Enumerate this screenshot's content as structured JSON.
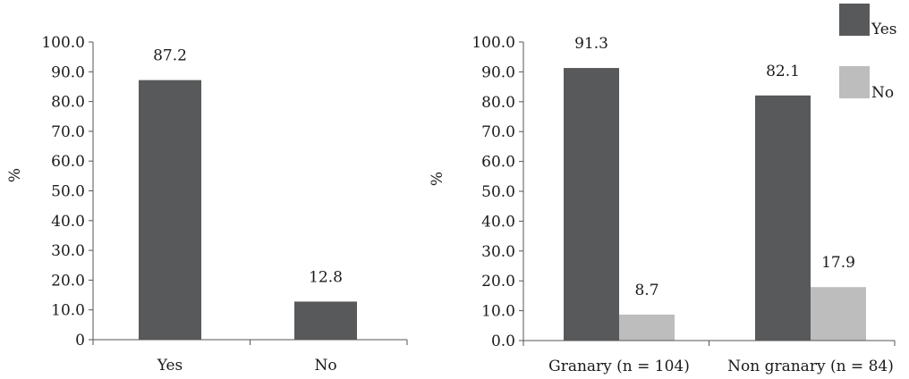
{
  "colors": {
    "yes": "#58595b",
    "no": "#bdbdbd",
    "axis": "#555555"
  },
  "chart_data": [
    {
      "type": "bar",
      "categories": [
        "Yes",
        "No"
      ],
      "series": [
        {
          "values": [
            87.2,
            12.8
          ],
          "colors": [
            "#58595b",
            "#58595b"
          ]
        }
      ],
      "data_labels": [
        "87.2",
        "12.8"
      ],
      "ylabel": "%",
      "ylim": [
        0,
        100
      ],
      "yticks": [
        "0",
        "10.0",
        "20.0",
        "30.0",
        "40.0",
        "50.0",
        "60.0",
        "70.0",
        "80.0",
        "90.0",
        "100.0"
      ],
      "grid": false,
      "legend": null
    },
    {
      "type": "bar",
      "categories": [
        "Granary (n = 104)",
        "Non granary (n = 84)"
      ],
      "series": [
        {
          "name": "Yes",
          "values": [
            91.3,
            82.1
          ],
          "data_labels": [
            "91.3",
            "82.1"
          ],
          "color": "#58595b"
        },
        {
          "name": "No",
          "values": [
            8.7,
            17.9
          ],
          "data_labels": [
            "8.7",
            "17.9"
          ],
          "color": "#bdbdbd"
        }
      ],
      "ylabel": "%",
      "ylim": [
        0,
        100
      ],
      "yticks": [
        "0.0",
        "10.0",
        "20.0",
        "30.0",
        "40.0",
        "50.0",
        "60.0",
        "70.0",
        "80.0",
        "90.0",
        "100.0"
      ],
      "grid": false,
      "legend": "top-right"
    }
  ]
}
